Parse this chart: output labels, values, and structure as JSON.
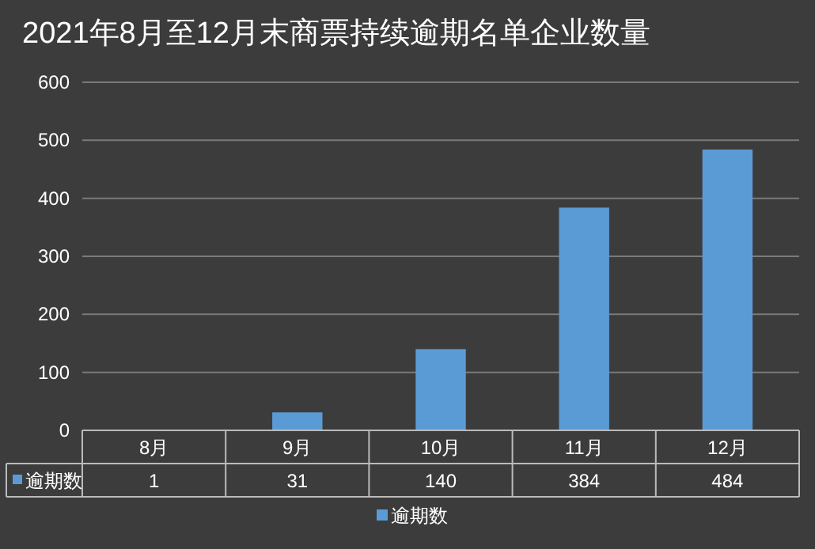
{
  "chart_data": {
    "type": "bar",
    "title": "2021年8月至12月末商票持续逾期名单企业数量",
    "categories": [
      "8月",
      "9月",
      "10月",
      "11月",
      "12月"
    ],
    "series": [
      {
        "name": "逾期数",
        "color": "#5b9bd5",
        "values": [
          1,
          31,
          140,
          384,
          484
        ]
      }
    ],
    "ylim": [
      0,
      600
    ],
    "yticks": [
      0,
      100,
      200,
      300,
      400,
      500,
      600
    ],
    "grid": "y",
    "legend": "bottom",
    "data_labels": true
  }
}
